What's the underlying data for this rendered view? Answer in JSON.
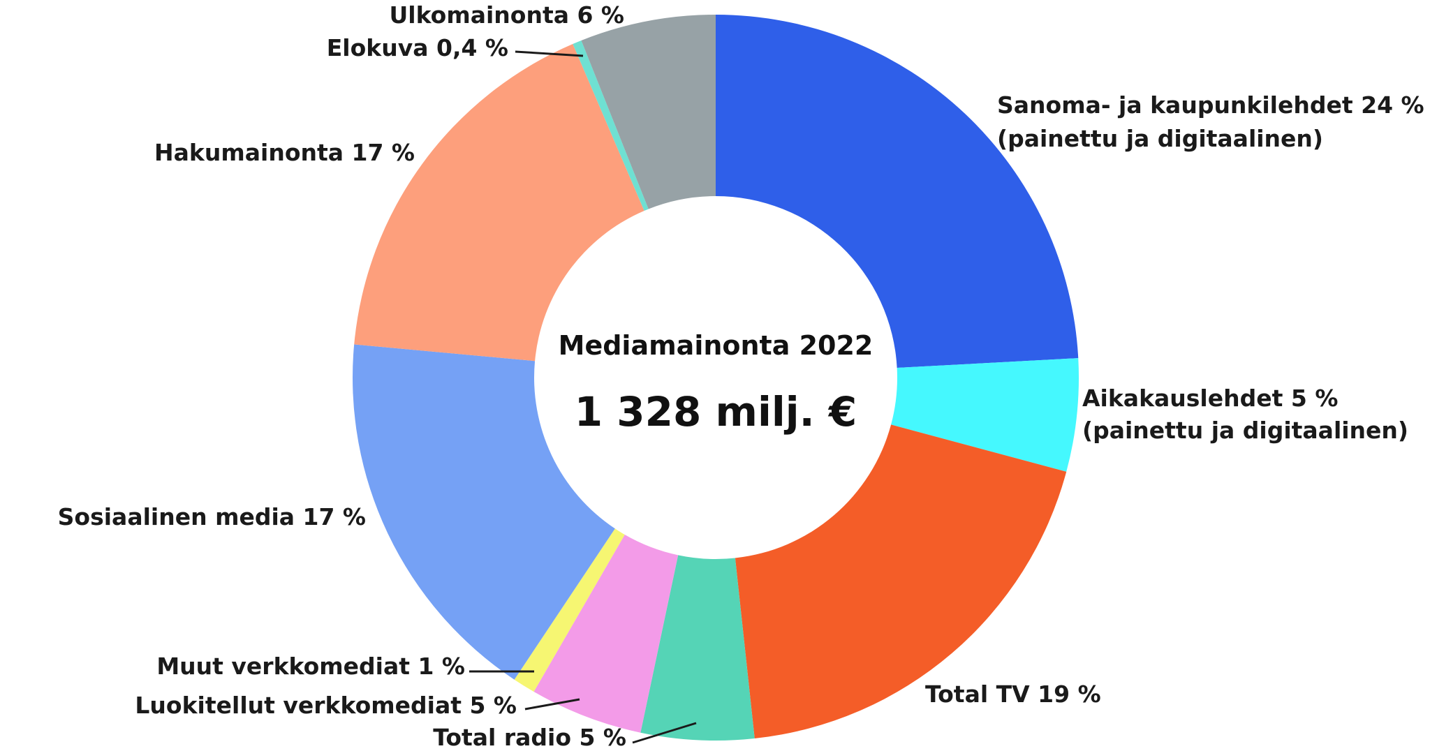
{
  "chart_data": {
    "type": "pie",
    "title": "Mediamainonta 2022",
    "total": "1 328 milj. €",
    "slices": [
      {
        "label": "Sanoma- ja kaupunkilehdet 24 %",
        "sublabel": "(painettu ja digitaalinen)",
        "value": 24,
        "color": "#2f5fe9"
      },
      {
        "label": "Aikakauslehdet 5 %",
        "sublabel": "(painettu ja digitaalinen)",
        "value": 5,
        "color": "#45f8fe"
      },
      {
        "label": "Total TV 19 %",
        "sublabel": "",
        "value": 19,
        "color": "#f45d28"
      },
      {
        "label": "Total radio 5 %",
        "sublabel": "",
        "value": 5,
        "color": "#55d4b6"
      },
      {
        "label": "Luokitellut verkkomediat 5 %",
        "sublabel": "",
        "value": 5,
        "color": "#f39be8"
      },
      {
        "label": "Muut verkkomediat 1 %",
        "sublabel": "",
        "value": 1,
        "color": "#f6f672"
      },
      {
        "label": "Sosiaalinen media 17 %",
        "sublabel": "",
        "value": 17,
        "color": "#75a1f5"
      },
      {
        "label": "Hakumainonta 17 %",
        "sublabel": "",
        "value": 17,
        "color": "#fd9f7c"
      },
      {
        "label": "Elokuva 0,4 %",
        "sublabel": "",
        "value": 0.4,
        "color": "#6fe0d2"
      },
      {
        "label": "Ulkomainonta 6 %",
        "sublabel": "",
        "value": 6,
        "color": "#97a2a6"
      }
    ]
  }
}
